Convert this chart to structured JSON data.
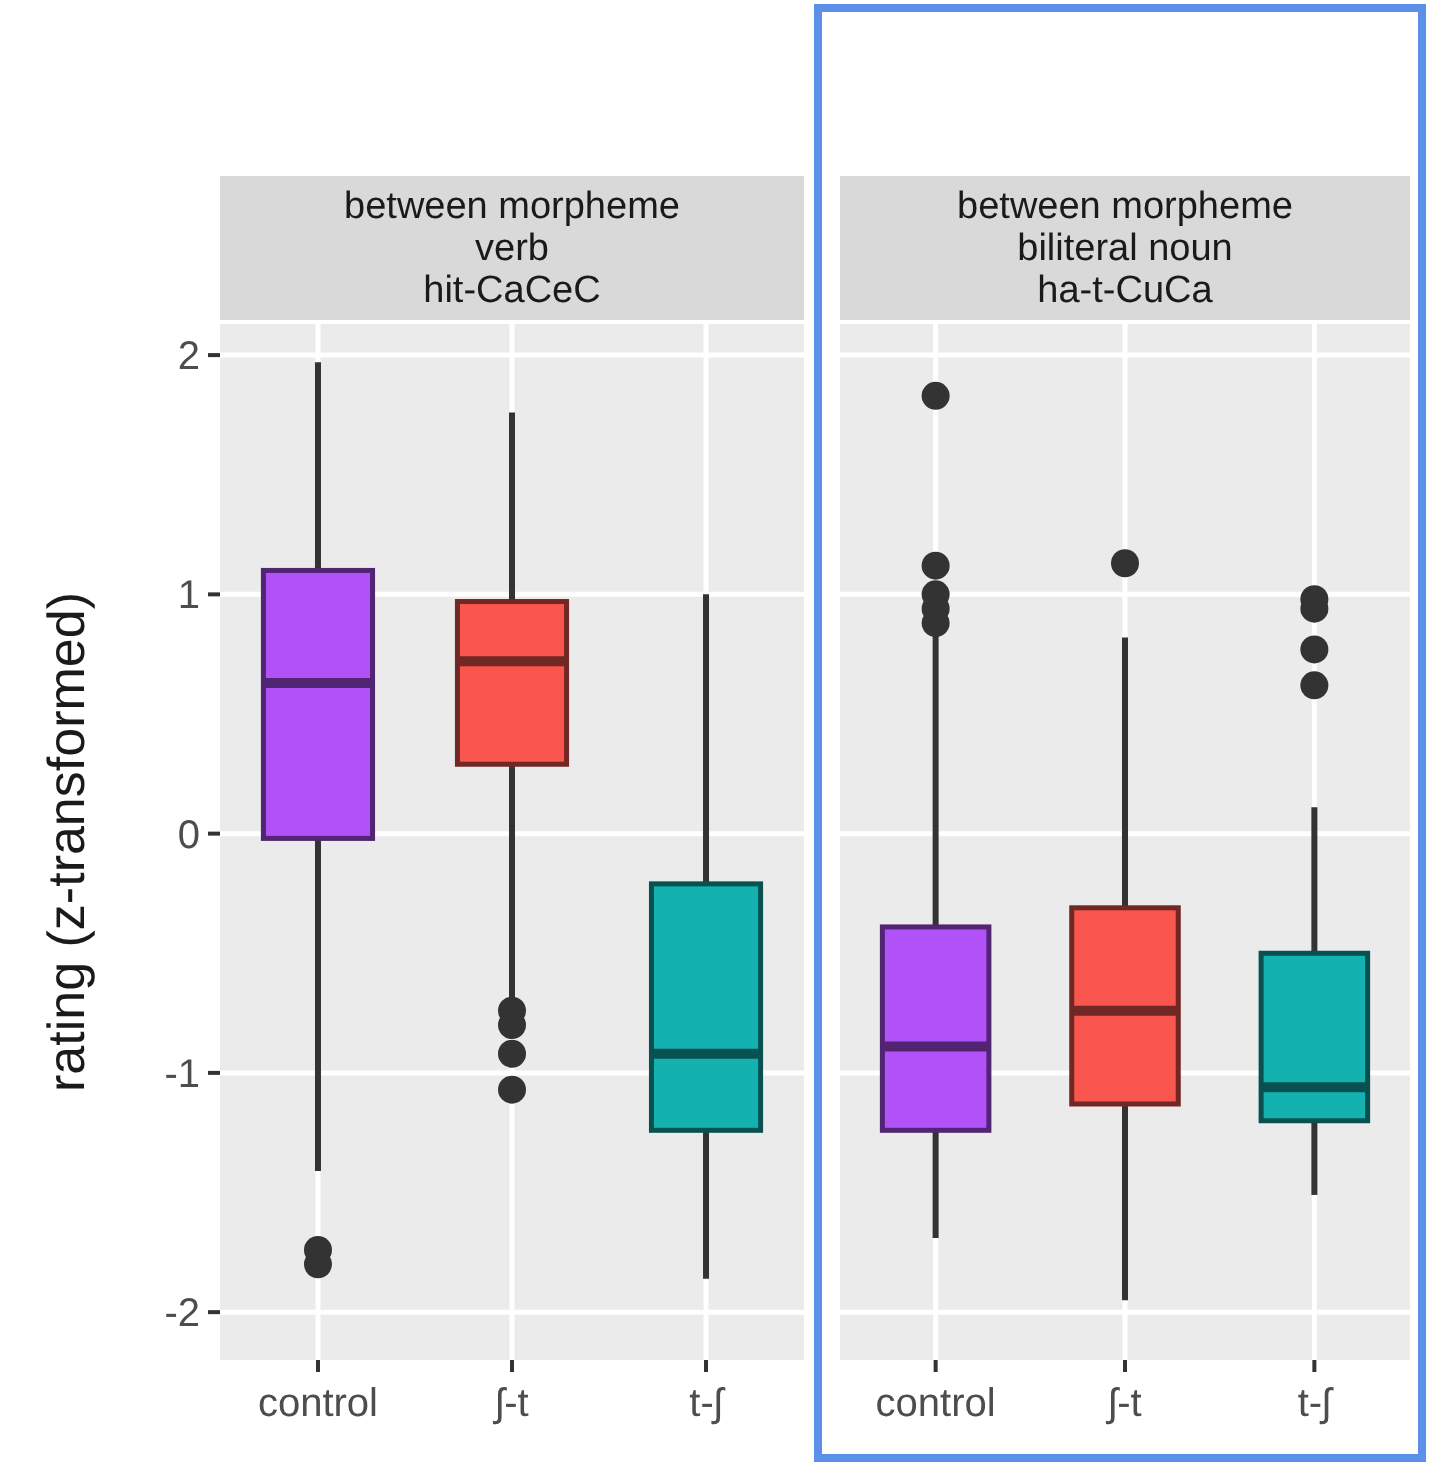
{
  "chart_data": [
    {
      "type": "box",
      "title": "between morpheme\nverb\nhit-CaCeC",
      "ylabel": "rating (z-transformed)",
      "categories": [
        "control",
        "ʃ-t",
        "t-ʃ"
      ],
      "colors": [
        "#b152f9",
        "#f8564e",
        "#14b1b1"
      ],
      "boxes": [
        {
          "low": -1.41,
          "q1": -0.02,
          "median": 0.63,
          "q3": 1.1,
          "high": 1.97,
          "outliers": [
            -1.74,
            -1.8
          ]
        },
        {
          "low": -0.69,
          "q1": 0.29,
          "median": 0.72,
          "q3": 0.97,
          "high": 1.76,
          "outliers": [
            -0.74,
            -0.8,
            -0.92,
            -1.07
          ]
        },
        {
          "low": -1.86,
          "q1": -1.24,
          "median": -0.92,
          "q3": -0.21,
          "high": 1.0
        }
      ],
      "ylim": [
        -2.2,
        2.13
      ],
      "yticks": [
        -2,
        -1,
        0,
        1,
        2
      ],
      "grid": true
    },
    {
      "type": "box",
      "title": "between morpheme\nbiliteral noun\nha-t-CuCa",
      "categories": [
        "control",
        "ʃ-t",
        "t-ʃ"
      ],
      "colors": [
        "#b152f9",
        "#f8564e",
        "#14b1b1"
      ],
      "boxes": [
        {
          "low": -1.69,
          "q1": -1.24,
          "median": -0.89,
          "q3": -0.39,
          "high": 0.84,
          "outliers": [
            1.83,
            1.12,
            1.0,
            0.94,
            0.88
          ]
        },
        {
          "low": -1.95,
          "q1": -1.13,
          "median": -0.74,
          "q3": -0.31,
          "high": 0.82,
          "outliers": [
            1.13
          ]
        },
        {
          "low": -1.51,
          "q1": -1.2,
          "median": -1.06,
          "q3": -0.5,
          "high": 0.11,
          "outliers": [
            0.98,
            0.94,
            0.77,
            0.62
          ]
        }
      ],
      "ylim": [
        -2.2,
        2.13
      ],
      "yticks": [
        -2,
        -1,
        0,
        1,
        2
      ],
      "grid": true,
      "tick_labels": "x"
    }
  ]
}
